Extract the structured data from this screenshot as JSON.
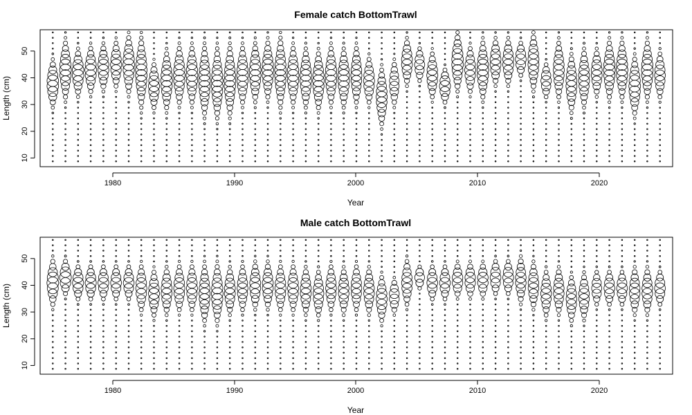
{
  "chart_data": [
    {
      "type": "scatter",
      "subtype": "bubble",
      "title": "Female catch BottomTrawl",
      "xlabel": "Year",
      "ylabel": "Length (cm)",
      "xlim": [
        1975,
        2025
      ],
      "ylim": [
        6,
        57
      ],
      "x_ticks": [
        1980,
        1990,
        2000,
        2010,
        2020
      ],
      "y_ticks": [
        10,
        20,
        30,
        40,
        50
      ],
      "years": [
        1976,
        1977,
        1978,
        1979,
        1980,
        1981,
        1982,
        1983,
        1984,
        1985,
        1986,
        1987,
        1988,
        1989,
        1990,
        1991,
        1992,
        1993,
        1994,
        1995,
        1996,
        1997,
        1998,
        1999,
        2000,
        2001,
        2002,
        2003,
        2004,
        2005,
        2006,
        2007,
        2008,
        2009,
        2010,
        2011,
        2012,
        2013,
        2014,
        2015,
        2016,
        2017,
        2018,
        2019,
        2020,
        2021,
        2022,
        2023,
        2024
      ],
      "length_bins_cm": [
        8,
        10,
        12,
        14,
        16,
        18,
        20,
        22,
        24,
        26,
        28,
        30,
        32,
        34,
        36,
        38,
        40,
        42,
        44,
        46,
        48,
        50,
        52,
        54,
        56
      ],
      "mode_length_cm": [
        37,
        42,
        41,
        42,
        43,
        44,
        44,
        41,
        36,
        38,
        40,
        40,
        38,
        37,
        38,
        40,
        41,
        42,
        41,
        40,
        39,
        38,
        40,
        39,
        40,
        38,
        32,
        37,
        45,
        44,
        40,
        36,
        45,
        42,
        42,
        45,
        45,
        46,
        45,
        38,
        42,
        37,
        39,
        41,
        42,
        42,
        36,
        42,
        40
      ],
      "spread_cm": [
        4,
        5,
        4,
        4,
        4,
        4,
        5,
        6,
        4,
        5,
        5,
        5,
        6,
        6,
        6,
        5,
        5,
        5,
        6,
        5,
        5,
        5,
        5,
        5,
        5,
        4,
        5,
        4,
        4,
        3,
        4,
        3,
        5,
        4,
        5,
        4,
        4,
        3,
        5,
        3,
        5,
        5,
        5,
        4,
        5,
        5,
        5,
        5,
        4
      ],
      "peak_size": [
        1,
        1,
        1,
        1,
        0.9,
        0.9,
        1,
        1,
        0.9,
        1,
        1,
        1,
        1,
        1,
        1,
        1,
        1,
        1,
        1,
        1,
        1,
        1,
        1,
        1,
        0.9,
        0.9,
        0.9,
        0.7,
        0.9,
        0.75,
        0.9,
        0.9,
        1,
        0.9,
        1,
        0.9,
        0.9,
        0.85,
        0.9,
        0.8,
        0.9,
        0.9,
        0.9,
        0.9,
        1,
        1,
        1,
        1,
        0.85
      ]
    },
    {
      "type": "scatter",
      "subtype": "bubble",
      "title": "Male catch BottomTrawl",
      "xlabel": "Year",
      "ylabel": "Length (cm)",
      "xlim": [
        1975,
        2025
      ],
      "ylim": [
        6,
        57
      ],
      "x_ticks": [
        1980,
        1990,
        2000,
        2010,
        2020
      ],
      "y_ticks": [
        10,
        20,
        30,
        40,
        50
      ],
      "years": [
        1976,
        1977,
        1978,
        1979,
        1980,
        1981,
        1982,
        1983,
        1984,
        1985,
        1986,
        1987,
        1988,
        1989,
        1990,
        1991,
        1992,
        1993,
        1994,
        1995,
        1996,
        1997,
        1998,
        1999,
        2000,
        2001,
        2002,
        2003,
        2004,
        2005,
        2006,
        2007,
        2008,
        2009,
        2010,
        2011,
        2012,
        2013,
        2014,
        2015,
        2016,
        2017,
        2018,
        2019,
        2020,
        2021,
        2022,
        2023,
        2024
      ],
      "length_bins_cm": [
        8,
        10,
        12,
        14,
        16,
        18,
        20,
        22,
        24,
        26,
        28,
        30,
        32,
        34,
        36,
        38,
        40,
        42,
        44,
        46,
        48,
        50,
        52,
        54,
        56
      ],
      "mode_length_cm": [
        40,
        42,
        40,
        40,
        40,
        40,
        40,
        38,
        36,
        37,
        38,
        38,
        36,
        36,
        37,
        38,
        39,
        39,
        38,
        38,
        37,
        36,
        38,
        37,
        38,
        37,
        34,
        35,
        40,
        42,
        40,
        40,
        41,
        41,
        41,
        42,
        42,
        41,
        39,
        36,
        37,
        34,
        35,
        38,
        38,
        38,
        37,
        37,
        38
      ],
      "spread_cm": [
        4,
        3,
        3,
        3,
        3,
        3,
        3,
        4,
        4,
        4,
        4,
        4,
        5,
        5,
        4,
        4,
        4,
        4,
        4,
        4,
        4,
        4,
        4,
        4,
        4,
        4,
        4,
        3,
        4,
        2,
        3,
        3,
        3,
        3,
        3,
        3,
        3,
        4,
        4,
        4,
        4,
        4,
        4,
        3,
        3,
        3,
        4,
        4,
        3
      ],
      "peak_size": [
        1,
        1,
        0.9,
        0.9,
        0.85,
        0.85,
        0.85,
        0.9,
        0.9,
        0.9,
        0.9,
        0.9,
        0.9,
        1,
        0.9,
        0.85,
        0.9,
        0.9,
        0.9,
        0.9,
        0.9,
        0.85,
        0.85,
        0.85,
        0.85,
        0.85,
        0.9,
        0.75,
        0.85,
        0.7,
        0.85,
        0.85,
        0.85,
        0.85,
        0.85,
        0.85,
        0.85,
        0.85,
        0.85,
        0.85,
        0.85,
        0.85,
        0.85,
        0.75,
        0.85,
        0.85,
        0.85,
        0.85,
        0.85
      ]
    }
  ]
}
